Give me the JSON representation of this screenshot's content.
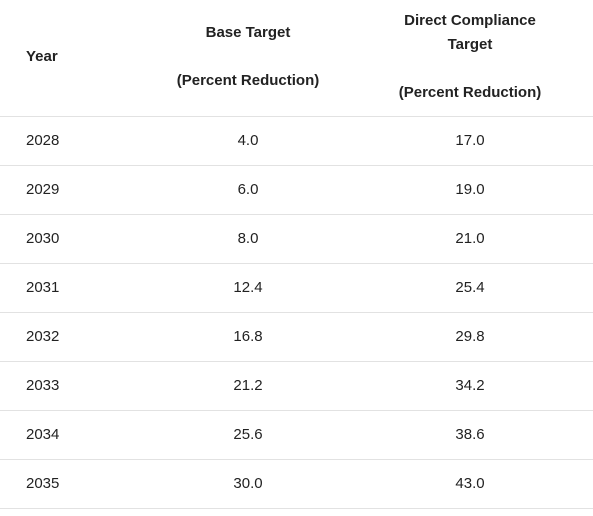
{
  "table": {
    "headers": {
      "year": "Year",
      "base_target": [
        "Base Target",
        "(Percent Reduction)"
      ],
      "direct_compliance_target": [
        "Direct Compliance",
        "Target",
        "(Percent Reduction)"
      ]
    },
    "rows": [
      {
        "year": "2028",
        "base": "4.0",
        "direct": "17.0"
      },
      {
        "year": "2029",
        "base": "6.0",
        "direct": "19.0"
      },
      {
        "year": "2030",
        "base": "8.0",
        "direct": "21.0"
      },
      {
        "year": "2031",
        "base": "12.4",
        "direct": "25.4"
      },
      {
        "year": "2032",
        "base": "16.8",
        "direct": "29.8"
      },
      {
        "year": "2033",
        "base": "21.2",
        "direct": "34.2"
      },
      {
        "year": "2034",
        "base": "25.6",
        "direct": "38.6"
      },
      {
        "year": "2035",
        "base": "30.0",
        "direct": "43.0"
      }
    ]
  },
  "colors": {
    "text": "#222222",
    "row_divider": "#e2e2e2",
    "background": "#ffffff"
  }
}
